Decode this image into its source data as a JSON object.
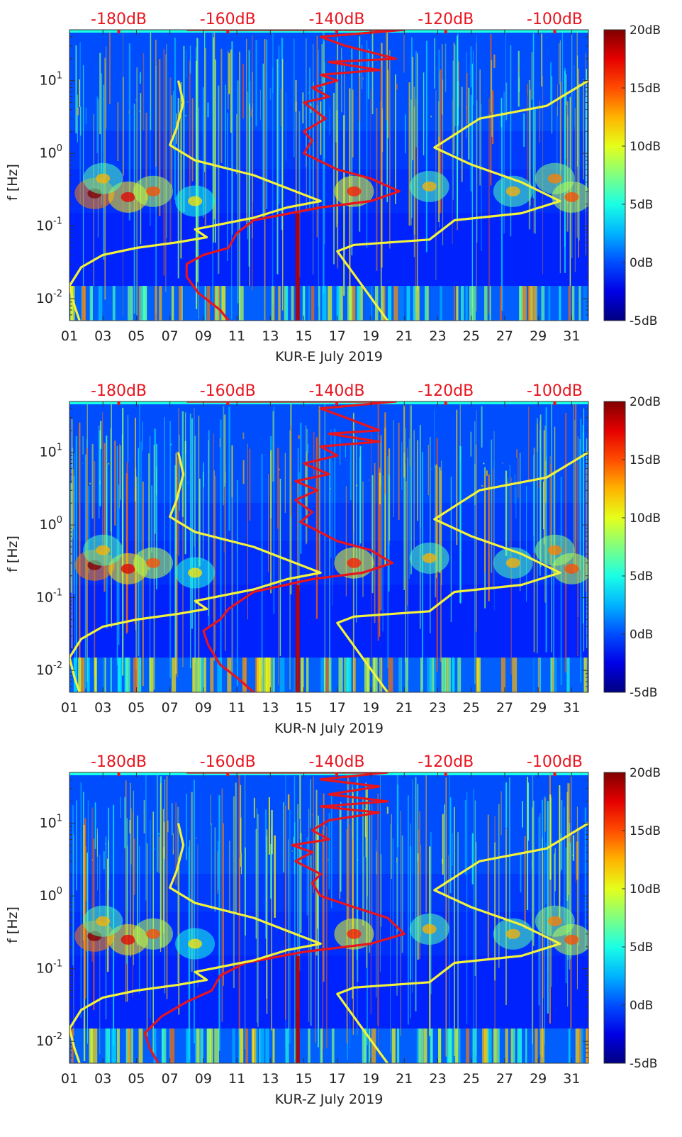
{
  "figure": {
    "ylabel": "f [Hz]",
    "colors": {
      "red_line": "#e8141e",
      "yellow_line": "#f2f23a",
      "top_axis_text": "#e8141e",
      "axis_text": "#222222"
    },
    "colormap": "jet",
    "colorbar": {
      "ticks": [
        "20dB",
        "15dB",
        "10dB",
        "5dB",
        "0dB",
        "-5dB"
      ],
      "range": [
        -5,
        20
      ]
    }
  },
  "chart_data": [
    {
      "type": "heatmap",
      "xlabel": "KUR-E July 2019",
      "ylabel": "f [Hz]",
      "x_ticks": [
        "01",
        "03",
        "05",
        "07",
        "09",
        "11",
        "13",
        "15",
        "17",
        "19",
        "21",
        "23",
        "25",
        "27",
        "29",
        "31"
      ],
      "y_ticks": [
        "10^-2",
        "10^-1",
        "10^0",
        "10^1"
      ],
      "y_scale": "log",
      "ylim": [
        0.005,
        50
      ],
      "xlim": [
        1,
        32
      ],
      "top_axis_ticks": [
        "-180dB",
        "-160dB",
        "-140dB",
        "-120dB",
        "-100dB"
      ],
      "colorbar_ticks": [
        "20dB",
        "15dB",
        "10dB",
        "5dB",
        "0dB",
        "-5dB"
      ],
      "series": [
        {
          "name": "red PSD curve",
          "color": "#e8141e",
          "points": [
            [
              8,
              50
            ],
            [
              21,
              50
            ],
            [
              16,
              40
            ],
            [
              17.5,
              30
            ],
            [
              20.5,
              20
            ],
            [
              16.5,
              18
            ],
            [
              19.5,
              14
            ],
            [
              16,
              12
            ],
            [
              17,
              10
            ],
            [
              15.5,
              8
            ],
            [
              16.5,
              6
            ],
            [
              15,
              5
            ],
            [
              16.3,
              3
            ],
            [
              15,
              2
            ],
            [
              15.5,
              1.5
            ],
            [
              15,
              1
            ],
            [
              17,
              0.6
            ],
            [
              19,
              0.45
            ],
            [
              20.7,
              0.3
            ],
            [
              19,
              0.22
            ],
            [
              16,
              0.18
            ],
            [
              12,
              0.12
            ],
            [
              11,
              0.08
            ],
            [
              10.5,
              0.05
            ],
            [
              9,
              0.04
            ],
            [
              8,
              0.03
            ],
            [
              8,
              0.02
            ],
            [
              8.7,
              0.012
            ],
            [
              10,
              0.007
            ],
            [
              10.5,
              0.005
            ]
          ]
        },
        {
          "name": "yellow NLNM",
          "color": "#f2f23a",
          "points": [
            [
              7.5,
              10
            ],
            [
              7.8,
              5
            ],
            [
              7.4,
              2.2
            ],
            [
              7,
              1.3
            ],
            [
              8.5,
              0.8
            ],
            [
              12,
              0.5
            ],
            [
              16,
              0.22
            ],
            [
              14,
              0.18
            ],
            [
              12,
              0.13
            ],
            [
              8.5,
              0.09
            ],
            [
              9.2,
              0.07
            ],
            [
              7.5,
              0.06
            ],
            [
              5,
              0.05
            ],
            [
              3,
              0.04
            ],
            [
              1.7,
              0.027
            ],
            [
              1,
              0.015
            ],
            [
              1.3,
              0.008
            ],
            [
              1.6,
              0.005
            ]
          ]
        },
        {
          "name": "yellow NHNM",
          "color": "#f2f23a",
          "points": [
            [
              32,
              10
            ],
            [
              29.5,
              4.5
            ],
            [
              25.5,
              3
            ],
            [
              22.8,
              1.2
            ],
            [
              25,
              0.7
            ],
            [
              28,
              0.4
            ],
            [
              30.3,
              0.22
            ],
            [
              28,
              0.15
            ],
            [
              24,
              0.12
            ],
            [
              22.5,
              0.065
            ],
            [
              18,
              0.055
            ],
            [
              17,
              0.045
            ],
            [
              18.5,
              0.015
            ],
            [
              20,
              0.005
            ]
          ]
        }
      ]
    },
    {
      "type": "heatmap",
      "xlabel": "KUR-N July 2019",
      "ylabel": "f [Hz]",
      "x_ticks": [
        "01",
        "03",
        "05",
        "07",
        "09",
        "11",
        "13",
        "15",
        "17",
        "19",
        "21",
        "23",
        "25",
        "27",
        "29",
        "31"
      ],
      "y_ticks": [
        "10^-2",
        "10^-1",
        "10^0",
        "10^1"
      ],
      "y_scale": "log",
      "ylim": [
        0.005,
        50
      ],
      "xlim": [
        1,
        32
      ],
      "top_axis_ticks": [
        "-180dB",
        "-160dB",
        "-140dB",
        "-120dB",
        "-100dB"
      ],
      "colorbar_ticks": [
        "20dB",
        "15dB",
        "10dB",
        "5dB",
        "0dB",
        "-5dB"
      ],
      "series": [
        {
          "name": "red PSD curve",
          "color": "#e8141e",
          "points": [
            [
              8,
              50
            ],
            [
              20.5,
              50
            ],
            [
              16,
              40
            ],
            [
              17.5,
              30
            ],
            [
              19.5,
              20
            ],
            [
              16.5,
              18
            ],
            [
              19.5,
              14
            ],
            [
              16,
              12
            ],
            [
              17,
              9
            ],
            [
              15,
              7
            ],
            [
              16.5,
              5
            ],
            [
              14.5,
              4
            ],
            [
              15.8,
              3
            ],
            [
              14.5,
              2.2
            ],
            [
              15.5,
              1.5
            ],
            [
              14.8,
              1.1
            ],
            [
              17,
              0.6
            ],
            [
              19,
              0.45
            ],
            [
              20.3,
              0.3
            ],
            [
              18.5,
              0.22
            ],
            [
              15.5,
              0.18
            ],
            [
              12,
              0.12
            ],
            [
              10.5,
              0.07
            ],
            [
              10,
              0.05
            ],
            [
              9,
              0.035
            ],
            [
              9.3,
              0.022
            ],
            [
              10,
              0.012
            ],
            [
              11,
              0.008
            ],
            [
              12,
              0.005
            ]
          ]
        },
        {
          "name": "yellow NLNM",
          "color": "#f2f23a",
          "points": [
            [
              7.5,
              10
            ],
            [
              7.8,
              5
            ],
            [
              7.4,
              2.2
            ],
            [
              7,
              1.3
            ],
            [
              8.5,
              0.8
            ],
            [
              12,
              0.5
            ],
            [
              16,
              0.22
            ],
            [
              14,
              0.18
            ],
            [
              12,
              0.13
            ],
            [
              8.5,
              0.09
            ],
            [
              9.2,
              0.07
            ],
            [
              7.5,
              0.06
            ],
            [
              5,
              0.05
            ],
            [
              3,
              0.04
            ],
            [
              1.7,
              0.027
            ],
            [
              1,
              0.015
            ],
            [
              1.3,
              0.008
            ],
            [
              1.6,
              0.005
            ]
          ]
        },
        {
          "name": "yellow NHNM",
          "color": "#f2f23a",
          "points": [
            [
              32,
              10
            ],
            [
              29.5,
              4.5
            ],
            [
              25.5,
              3
            ],
            [
              22.8,
              1.2
            ],
            [
              25,
              0.7
            ],
            [
              28,
              0.4
            ],
            [
              30.3,
              0.22
            ],
            [
              28,
              0.15
            ],
            [
              24,
              0.12
            ],
            [
              22.5,
              0.065
            ],
            [
              18,
              0.055
            ],
            [
              17,
              0.045
            ],
            [
              18.5,
              0.015
            ],
            [
              20,
              0.005
            ]
          ]
        }
      ]
    },
    {
      "type": "heatmap",
      "xlabel": "KUR-Z July 2019",
      "ylabel": "f [Hz]",
      "x_ticks": [
        "01",
        "03",
        "05",
        "07",
        "09",
        "11",
        "13",
        "15",
        "17",
        "19",
        "21",
        "23",
        "25",
        "27",
        "29",
        "31"
      ],
      "y_ticks": [
        "10^-2",
        "10^-1",
        "10^0",
        "10^1"
      ],
      "y_scale": "log",
      "ylim": [
        0.005,
        50
      ],
      "xlim": [
        1,
        32
      ],
      "top_axis_ticks": [
        "-180dB",
        "-160dB",
        "-140dB",
        "-120dB",
        "-100dB"
      ],
      "colorbar_ticks": [
        "20dB",
        "15dB",
        "10dB",
        "5dB",
        "0dB",
        "-5dB"
      ],
      "series": [
        {
          "name": "red PSD curve",
          "color": "#e8141e",
          "points": [
            [
              8,
              50
            ],
            [
              20,
              50
            ],
            [
              16,
              40
            ],
            [
              19.5,
              32
            ],
            [
              16.5,
              25
            ],
            [
              20,
              20
            ],
            [
              16,
              17
            ],
            [
              19.5,
              14
            ],
            [
              16.5,
              11
            ],
            [
              15.5,
              8
            ],
            [
              16.5,
              6
            ],
            [
              14.3,
              5
            ],
            [
              15.5,
              4
            ],
            [
              14.5,
              3
            ],
            [
              16,
              2
            ],
            [
              15.5,
              1.5
            ],
            [
              16,
              1
            ],
            [
              18,
              0.7
            ],
            [
              20,
              0.5
            ],
            [
              21,
              0.3
            ],
            [
              19,
              0.22
            ],
            [
              15,
              0.17
            ],
            [
              11.5,
              0.12
            ],
            [
              10,
              0.08
            ],
            [
              9.5,
              0.05
            ],
            [
              8,
              0.035
            ],
            [
              6.5,
              0.022
            ],
            [
              5.5,
              0.013
            ],
            [
              5.8,
              0.008
            ],
            [
              6.3,
              0.005
            ]
          ]
        },
        {
          "name": "yellow NLNM",
          "color": "#f2f23a",
          "points": [
            [
              7.5,
              10
            ],
            [
              7.8,
              5
            ],
            [
              7.4,
              2.2
            ],
            [
              7,
              1.3
            ],
            [
              8.5,
              0.8
            ],
            [
              12,
              0.5
            ],
            [
              16,
              0.22
            ],
            [
              14,
              0.18
            ],
            [
              12,
              0.13
            ],
            [
              8.5,
              0.09
            ],
            [
              9.2,
              0.07
            ],
            [
              7.5,
              0.06
            ],
            [
              5,
              0.05
            ],
            [
              3,
              0.04
            ],
            [
              1.7,
              0.027
            ],
            [
              1,
              0.015
            ],
            [
              1.3,
              0.008
            ],
            [
              1.6,
              0.005
            ]
          ]
        },
        {
          "name": "yellow NHNM",
          "color": "#f2f23a",
          "points": [
            [
              32,
              10
            ],
            [
              29.5,
              4.5
            ],
            [
              25.5,
              3
            ],
            [
              22.8,
              1.2
            ],
            [
              25,
              0.7
            ],
            [
              28,
              0.4
            ],
            [
              30.3,
              0.22
            ],
            [
              28,
              0.15
            ],
            [
              24,
              0.12
            ],
            [
              22.5,
              0.065
            ],
            [
              18,
              0.055
            ],
            [
              17,
              0.045
            ],
            [
              18.5,
              0.015
            ],
            [
              20,
              0.005
            ]
          ]
        }
      ]
    }
  ]
}
